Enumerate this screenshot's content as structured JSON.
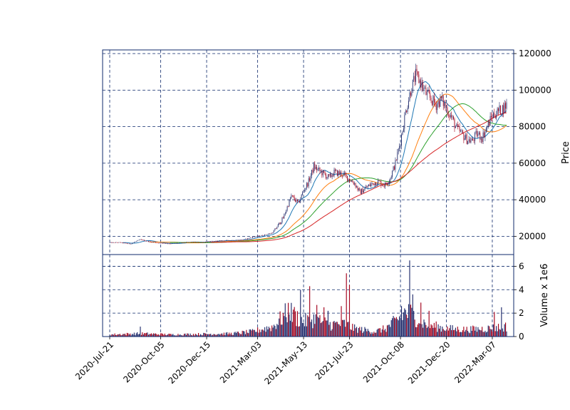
{
  "chart_data": {
    "type": "candlestick",
    "panels": {
      "price": {
        "ylabel": "Price",
        "ylim": [
          10000,
          122000
        ],
        "yticks": [
          20000,
          40000,
          60000,
          80000,
          100000,
          120000
        ],
        "ytick_labels": [
          "20000",
          "40000",
          "60000",
          "80000",
          "100000",
          "120000"
        ]
      },
      "volume": {
        "ylabel": "Volume x 1e6",
        "ylim": [
          0,
          7
        ],
        "yticks": [
          0,
          2,
          4,
          6
        ],
        "ytick_labels": [
          "0",
          "2",
          "4",
          "6"
        ]
      }
    },
    "x_ticks": [
      "2020-Jul-21",
      "2020-Oct-05",
      "2020-Dec-15",
      "2021-Mar-03",
      "2021-May-13",
      "2021-Jul-23",
      "2021-Oct-08",
      "2021-Dec-20",
      "2022-Mar-07"
    ],
    "grid": true,
    "grid_style": "dashed",
    "colors": {
      "up": "#1f2a6b",
      "down": "#a3001b",
      "frame": "#0f2a6b",
      "grid": "#0f2a6b",
      "ma_short": "#1f77b4",
      "ma_mid": "#ff7f0e",
      "ma_long": "#2ca02c",
      "ma_xlong": "#d62728"
    },
    "price_anchors": [
      [
        0,
        16500
      ],
      [
        10,
        16600
      ],
      [
        20,
        15800
      ],
      [
        30,
        18200
      ],
      [
        40,
        16900
      ],
      [
        50,
        16200
      ],
      [
        60,
        16000
      ],
      [
        70,
        16400
      ],
      [
        80,
        16800
      ],
      [
        90,
        16700
      ],
      [
        100,
        17200
      ],
      [
        110,
        17600
      ],
      [
        120,
        17800
      ],
      [
        130,
        18000
      ],
      [
        140,
        19500
      ],
      [
        150,
        20500
      ],
      [
        160,
        22000
      ],
      [
        170,
        30000
      ],
      [
        178,
        42000
      ],
      [
        185,
        38000
      ],
      [
        190,
        45000
      ],
      [
        195,
        50000
      ],
      [
        200,
        58000
      ],
      [
        205,
        56000
      ],
      [
        210,
        54000
      ],
      [
        215,
        52000
      ],
      [
        220,
        55000
      ],
      [
        228,
        54000
      ],
      [
        233,
        52000
      ],
      [
        240,
        49000
      ],
      [
        245,
        44000
      ],
      [
        250,
        46000
      ],
      [
        255,
        48000
      ],
      [
        262,
        50000
      ],
      [
        270,
        48000
      ],
      [
        275,
        52000
      ],
      [
        280,
        60000
      ],
      [
        285,
        72000
      ],
      [
        290,
        88000
      ],
      [
        295,
        100000
      ],
      [
        300,
        108000
      ],
      [
        305,
        104000
      ],
      [
        310,
        98000
      ],
      [
        315,
        95000
      ],
      [
        320,
        92000
      ],
      [
        325,
        95000
      ],
      [
        330,
        90000
      ],
      [
        335,
        85000
      ],
      [
        340,
        79000
      ],
      [
        345,
        76000
      ],
      [
        350,
        73000
      ],
      [
        355,
        72000
      ],
      [
        360,
        76000
      ],
      [
        365,
        74000
      ],
      [
        370,
        80000
      ],
      [
        375,
        86000
      ],
      [
        380,
        88000
      ],
      [
        385,
        90000
      ],
      [
        389,
        92000
      ]
    ],
    "volume_anchors": [
      [
        0,
        0.2
      ],
      [
        30,
        0.3
      ],
      [
        60,
        0.2
      ],
      [
        90,
        0.25
      ],
      [
        120,
        0.3
      ],
      [
        140,
        0.5
      ],
      [
        160,
        1.0
      ],
      [
        175,
        2.5
      ],
      [
        190,
        1.5
      ],
      [
        200,
        1.8
      ],
      [
        215,
        1.2
      ],
      [
        230,
        1.3
      ],
      [
        240,
        0.8
      ],
      [
        260,
        0.5
      ],
      [
        270,
        0.8
      ],
      [
        280,
        1.5
      ],
      [
        290,
        2.5
      ],
      [
        300,
        2.0
      ],
      [
        310,
        1.2
      ],
      [
        330,
        0.8
      ],
      [
        350,
        0.7
      ],
      [
        370,
        0.8
      ],
      [
        389,
        1.0
      ]
    ],
    "volume_spikes": [
      [
        30,
        0.85
      ],
      [
        176,
        1.9
      ],
      [
        180,
        2.3
      ],
      [
        187,
        4.0
      ],
      [
        196,
        4.3
      ],
      [
        203,
        2.7
      ],
      [
        210,
        2.5
      ],
      [
        214,
        2.2
      ],
      [
        227,
        2.6
      ],
      [
        232,
        5.4
      ],
      [
        235,
        4.4
      ],
      [
        286,
        2.6
      ],
      [
        294,
        6.5
      ],
      [
        297,
        3.6
      ],
      [
        305,
        2.9
      ],
      [
        313,
        2.2
      ],
      [
        377,
        2.1
      ],
      [
        384,
        2.5
      ]
    ],
    "moving_averages": [
      7,
      20,
      30,
      50
    ],
    "n_bars": 390,
    "x_tick_bar_index": [
      0,
      50,
      95,
      145,
      190,
      235,
      285,
      330,
      375
    ]
  }
}
